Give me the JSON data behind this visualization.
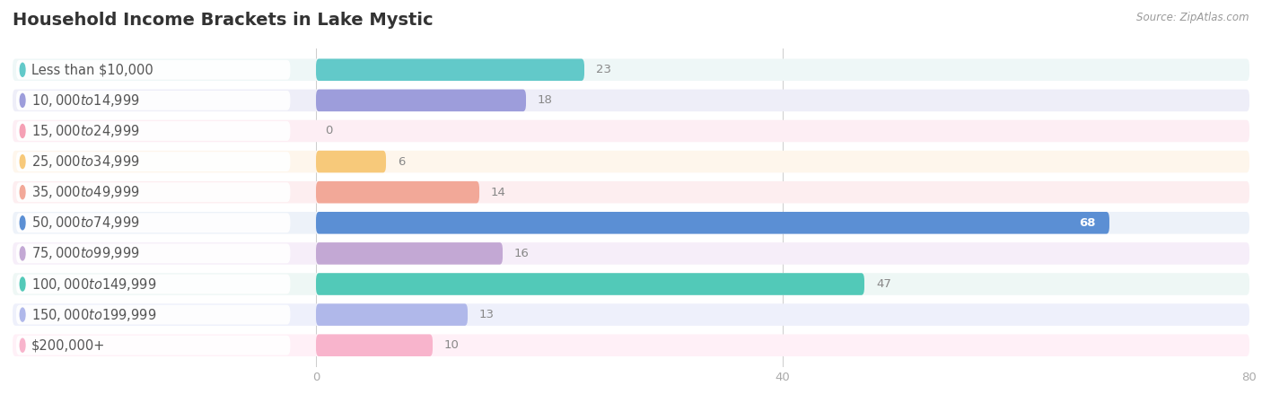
{
  "title": "Household Income Brackets in Lake Mystic",
  "source": "Source: ZipAtlas.com",
  "categories": [
    "Less than $10,000",
    "$10,000 to $14,999",
    "$15,000 to $24,999",
    "$25,000 to $34,999",
    "$35,000 to $49,999",
    "$50,000 to $74,999",
    "$75,000 to $99,999",
    "$100,000 to $149,999",
    "$150,000 to $199,999",
    "$200,000+"
  ],
  "values": [
    23,
    18,
    0,
    6,
    14,
    68,
    16,
    47,
    13,
    10
  ],
  "bar_colors": [
    "#62c9c9",
    "#9d9ddb",
    "#f5a0b5",
    "#f7c97a",
    "#f2a898",
    "#5b8fd4",
    "#c3a8d4",
    "#52c9b8",
    "#b0b8ea",
    "#f8b4cc"
  ],
  "row_bg_colors": [
    "#eef7f7",
    "#eeeef8",
    "#fdeef4",
    "#fef6ec",
    "#fdeef0",
    "#edf2f9",
    "#f6eef9",
    "#eef7f5",
    "#eef0fb",
    "#fff0f7"
  ],
  "xlim": [
    0,
    80
  ],
  "xticks": [
    0,
    40,
    80
  ],
  "background_color": "#ffffff",
  "title_fontsize": 14,
  "label_fontsize": 10.5,
  "value_fontsize": 9.5
}
